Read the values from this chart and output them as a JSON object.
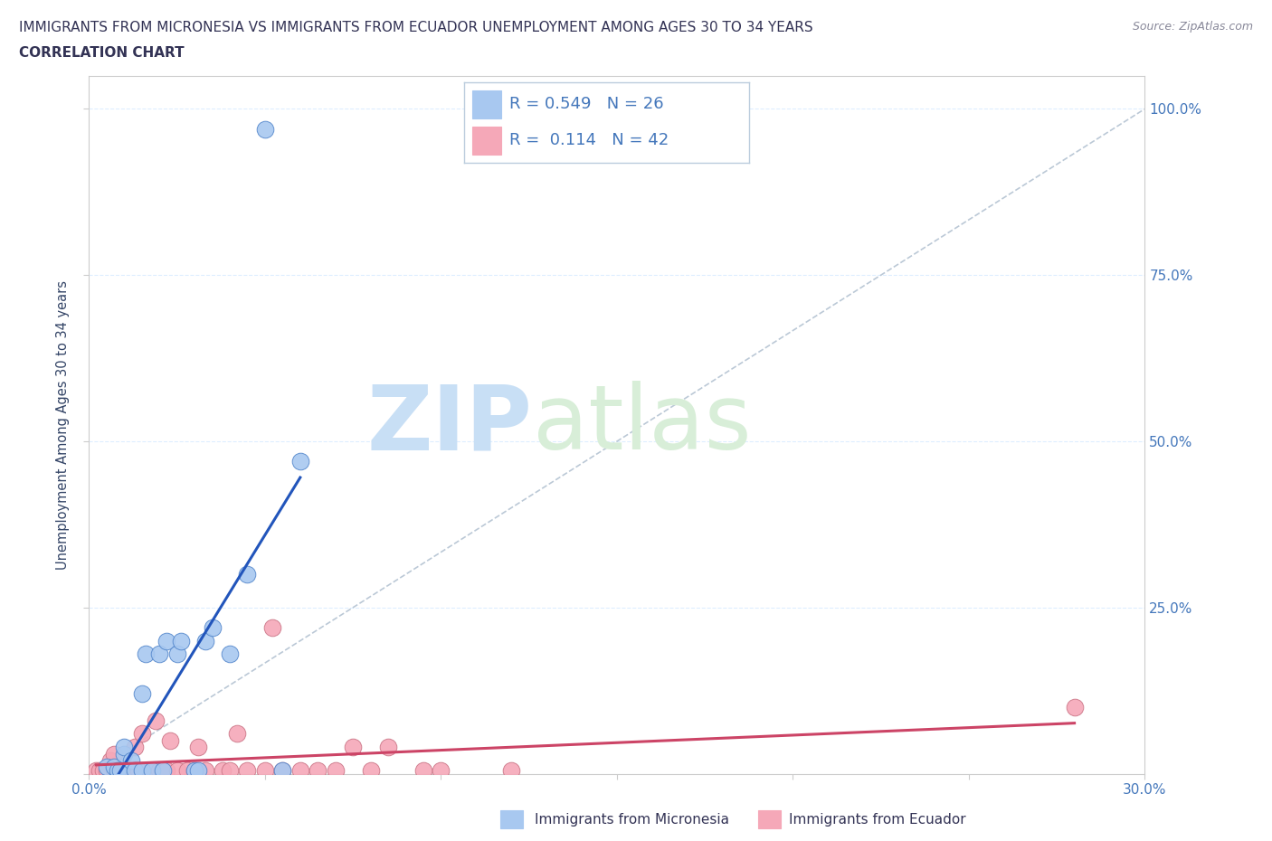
{
  "title_line1": "IMMIGRANTS FROM MICRONESIA VS IMMIGRANTS FROM ECUADOR UNEMPLOYMENT AMONG AGES 30 TO 34 YEARS",
  "title_line2": "CORRELATION CHART",
  "source_text": "Source: ZipAtlas.com",
  "ylabel": "Unemployment Among Ages 30 to 34 years",
  "xlim": [
    0.0,
    0.3
  ],
  "ylim": [
    0.0,
    1.05
  ],
  "xticks": [
    0.0,
    0.05,
    0.1,
    0.15,
    0.2,
    0.25,
    0.3
  ],
  "xtick_labels": [
    "0.0%",
    "",
    "",
    "",
    "",
    "",
    "30.0%"
  ],
  "ytick_positions": [
    0.0,
    0.25,
    0.5,
    0.75,
    1.0
  ],
  "ytick_right_labels": [
    "",
    "25.0%",
    "50.0%",
    "75.0%",
    "100.0%"
  ],
  "micronesia_color": "#a8c8f0",
  "micronesia_edge": "#5588cc",
  "ecuador_color": "#f5a8b8",
  "ecuador_edge": "#cc7788",
  "micronesia_R": "0.549",
  "micronesia_N": 26,
  "ecuador_R": "0.114",
  "ecuador_N": 42,
  "watermark_zip": "ZIP",
  "watermark_atlas": "atlas",
  "legend_label_1": "Immigrants from Micronesia",
  "legend_label_2": "Immigrants from Ecuador",
  "micronesia_x": [
    0.005,
    0.007,
    0.008,
    0.009,
    0.01,
    0.01,
    0.012,
    0.013,
    0.015,
    0.015,
    0.016,
    0.018,
    0.02,
    0.021,
    0.022,
    0.025,
    0.026,
    0.03,
    0.031,
    0.033,
    0.035,
    0.04,
    0.045,
    0.055,
    0.06,
    0.05
  ],
  "micronesia_y": [
    0.01,
    0.01,
    0.005,
    0.005,
    0.03,
    0.04,
    0.02,
    0.005,
    0.005,
    0.12,
    0.18,
    0.005,
    0.18,
    0.005,
    0.2,
    0.18,
    0.2,
    0.005,
    0.005,
    0.2,
    0.22,
    0.18,
    0.3,
    0.005,
    0.47,
    0.97
  ],
  "ecuador_x": [
    0.002,
    0.003,
    0.004,
    0.005,
    0.006,
    0.007,
    0.007,
    0.008,
    0.01,
    0.011,
    0.012,
    0.013,
    0.014,
    0.015,
    0.018,
    0.019,
    0.02,
    0.021,
    0.022,
    0.023,
    0.025,
    0.028,
    0.03,
    0.031,
    0.033,
    0.038,
    0.04,
    0.042,
    0.045,
    0.05,
    0.052,
    0.055,
    0.06,
    0.065,
    0.07,
    0.075,
    0.08,
    0.085,
    0.095,
    0.1,
    0.12,
    0.28
  ],
  "ecuador_y": [
    0.005,
    0.005,
    0.005,
    0.005,
    0.02,
    0.005,
    0.03,
    0.005,
    0.005,
    0.005,
    0.005,
    0.04,
    0.005,
    0.06,
    0.005,
    0.08,
    0.005,
    0.005,
    0.005,
    0.05,
    0.005,
    0.005,
    0.005,
    0.04,
    0.005,
    0.005,
    0.005,
    0.06,
    0.005,
    0.005,
    0.22,
    0.005,
    0.005,
    0.005,
    0.005,
    0.04,
    0.005,
    0.04,
    0.005,
    0.005,
    0.005,
    0.1
  ],
  "title_color": "#333355",
  "axis_label_color": "#334466",
  "tick_color": "#4477bb",
  "grid_color": "#ddeeff",
  "regression_micronesia_color": "#2255bb",
  "regression_ecuador_color": "#cc4466",
  "diagonal_color": "#aabbcc",
  "legend_box_color": "#ccddee"
}
